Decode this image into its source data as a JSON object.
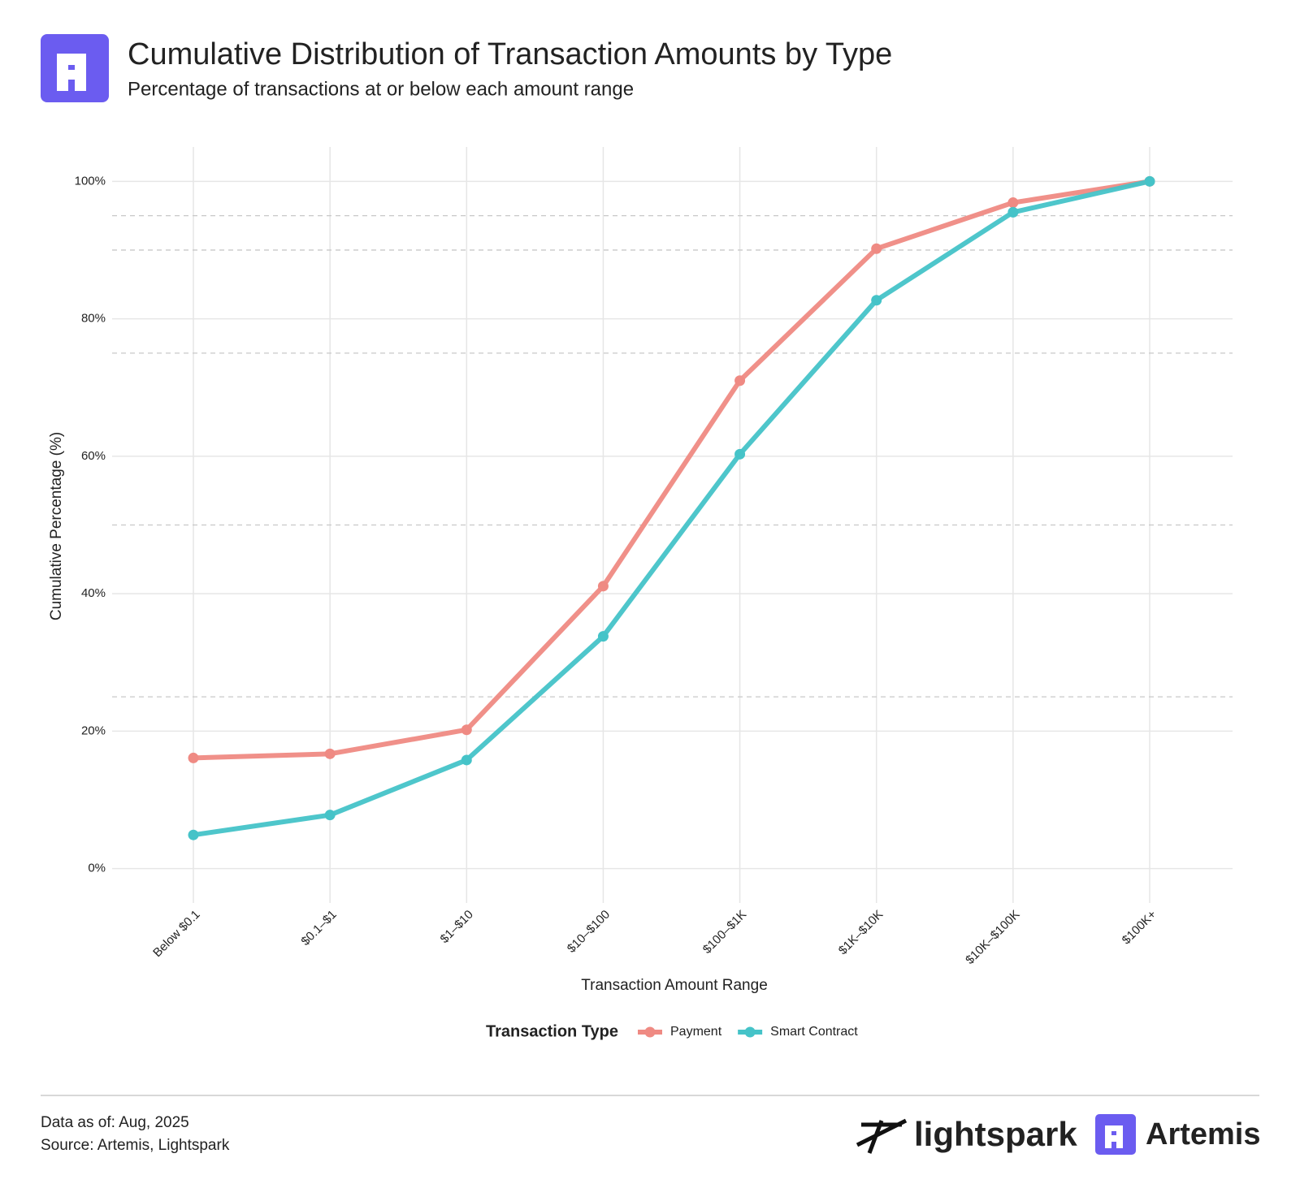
{
  "chart_data": {
    "type": "line",
    "title": "Cumulative Distribution of Transaction Amounts by Type",
    "subtitle": "Percentage of transactions at or below each amount range",
    "x_label": "Transaction Amount Range",
    "y_label": "Cumulative Percentage (%)",
    "legend_title": "Transaction Type",
    "categories": [
      "Below $0.1",
      "$0.1–$1",
      "$1–$10",
      "$10–$100",
      "$100–$1K",
      "$1K–$10K",
      "$10K–$100K",
      "$100K+"
    ],
    "series": [
      {
        "name": "Payment",
        "color": "#ef8a83",
        "values": [
          16.1,
          16.7,
          20.2,
          41.1,
          71.0,
          90.2,
          96.9,
          100
        ]
      },
      {
        "name": "Smart Contract",
        "color": "#45c3c8",
        "values": [
          4.9,
          7.8,
          15.8,
          33.8,
          60.3,
          82.7,
          95.5,
          100
        ]
      }
    ],
    "ylim": [
      -5,
      105
    ],
    "yticks": [
      {
        "value": 0,
        "label": "0%"
      },
      {
        "value": 20,
        "label": "20%"
      },
      {
        "value": 40,
        "label": "40%"
      },
      {
        "value": 60,
        "label": "60%"
      },
      {
        "value": 80,
        "label": "80%"
      },
      {
        "value": 100,
        "label": "100%"
      }
    ],
    "reference_lines": [
      25,
      50,
      75,
      90,
      95
    ],
    "grid": true,
    "legend_position": "bottom"
  },
  "footer": {
    "data_as_of": "Data as of: Aug, 2025",
    "source": "Source: Artemis, Lightspark",
    "logos": [
      "lightspark",
      "Artemis"
    ]
  }
}
